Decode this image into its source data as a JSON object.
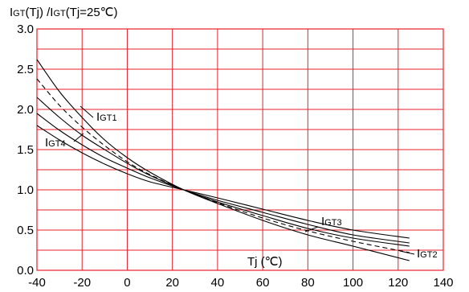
{
  "chart_data": {
    "type": "line",
    "title_parts": [
      {
        "text": "I",
        "sub": false
      },
      {
        "text": "GT",
        "sub": true
      },
      {
        "text": "(Tj) /I",
        "sub": false
      },
      {
        "text": "GT",
        "sub": true
      },
      {
        "text": "(Tj=25℃)",
        "sub": false
      }
    ],
    "xlabel": "Tj (℃)",
    "xlim": [
      -40,
      140
    ],
    "ylim": [
      0,
      3.0
    ],
    "xticks": [
      "-40",
      "-20",
      "0",
      "20",
      "40",
      "60",
      "80",
      "100",
      "120",
      "140"
    ],
    "yticks": [
      "0.0",
      "0.5",
      "1.0",
      "1.5",
      "2.0",
      "2.5",
      "3.0"
    ],
    "grid": true,
    "series": [
      {
        "name": "IGT1",
        "name_parts": [
          {
            "text": "I",
            "sub": false
          },
          {
            "text": "GT1",
            "sub": true
          }
        ],
        "dashed": false,
        "x": [
          -40,
          -30,
          -20,
          -10,
          0,
          10,
          25,
          40,
          60,
          80,
          100,
          125
        ],
        "y": [
          2.62,
          2.22,
          1.9,
          1.62,
          1.4,
          1.22,
          1.0,
          0.83,
          0.62,
          0.44,
          0.3,
          0.12
        ]
      },
      {
        "name": "",
        "dashed": true,
        "x": [
          -40,
          -30,
          -20,
          -10,
          0,
          10,
          25,
          40,
          60,
          80,
          100,
          125
        ],
        "y": [
          2.38,
          2.05,
          1.78,
          1.55,
          1.35,
          1.19,
          1.0,
          0.84,
          0.65,
          0.49,
          0.36,
          0.22
        ]
      },
      {
        "name": "IGT4",
        "name_parts": [
          {
            "text": "I",
            "sub": false
          },
          {
            "text": "GT4",
            "sub": true
          }
        ],
        "dashed": false,
        "x": [
          -40,
          -30,
          -20,
          -10,
          0,
          10,
          25,
          40,
          60,
          80,
          100,
          125
        ],
        "y": [
          2.15,
          1.9,
          1.68,
          1.5,
          1.33,
          1.18,
          1.0,
          0.85,
          0.68,
          0.52,
          0.4,
          0.3
        ]
      },
      {
        "name": "IGT3",
        "name_parts": [
          {
            "text": "I",
            "sub": false
          },
          {
            "text": "GT3",
            "sub": true
          }
        ],
        "dashed": false,
        "x": [
          -40,
          -30,
          -20,
          -10,
          0,
          10,
          25,
          40,
          60,
          80,
          100,
          125
        ],
        "y": [
          1.95,
          1.74,
          1.56,
          1.4,
          1.27,
          1.15,
          1.0,
          0.87,
          0.72,
          0.57,
          0.44,
          0.34
        ]
      },
      {
        "name": "IGT2",
        "name_parts": [
          {
            "text": "I",
            "sub": false
          },
          {
            "text": "GT2",
            "sub": true
          }
        ],
        "dashed": false,
        "x": [
          -40,
          -30,
          -20,
          -10,
          0,
          10,
          25,
          40,
          60,
          80,
          100,
          125
        ],
        "y": [
          1.8,
          1.62,
          1.46,
          1.32,
          1.2,
          1.1,
          1.0,
          0.9,
          0.76,
          0.62,
          0.5,
          0.4
        ]
      }
    ]
  }
}
